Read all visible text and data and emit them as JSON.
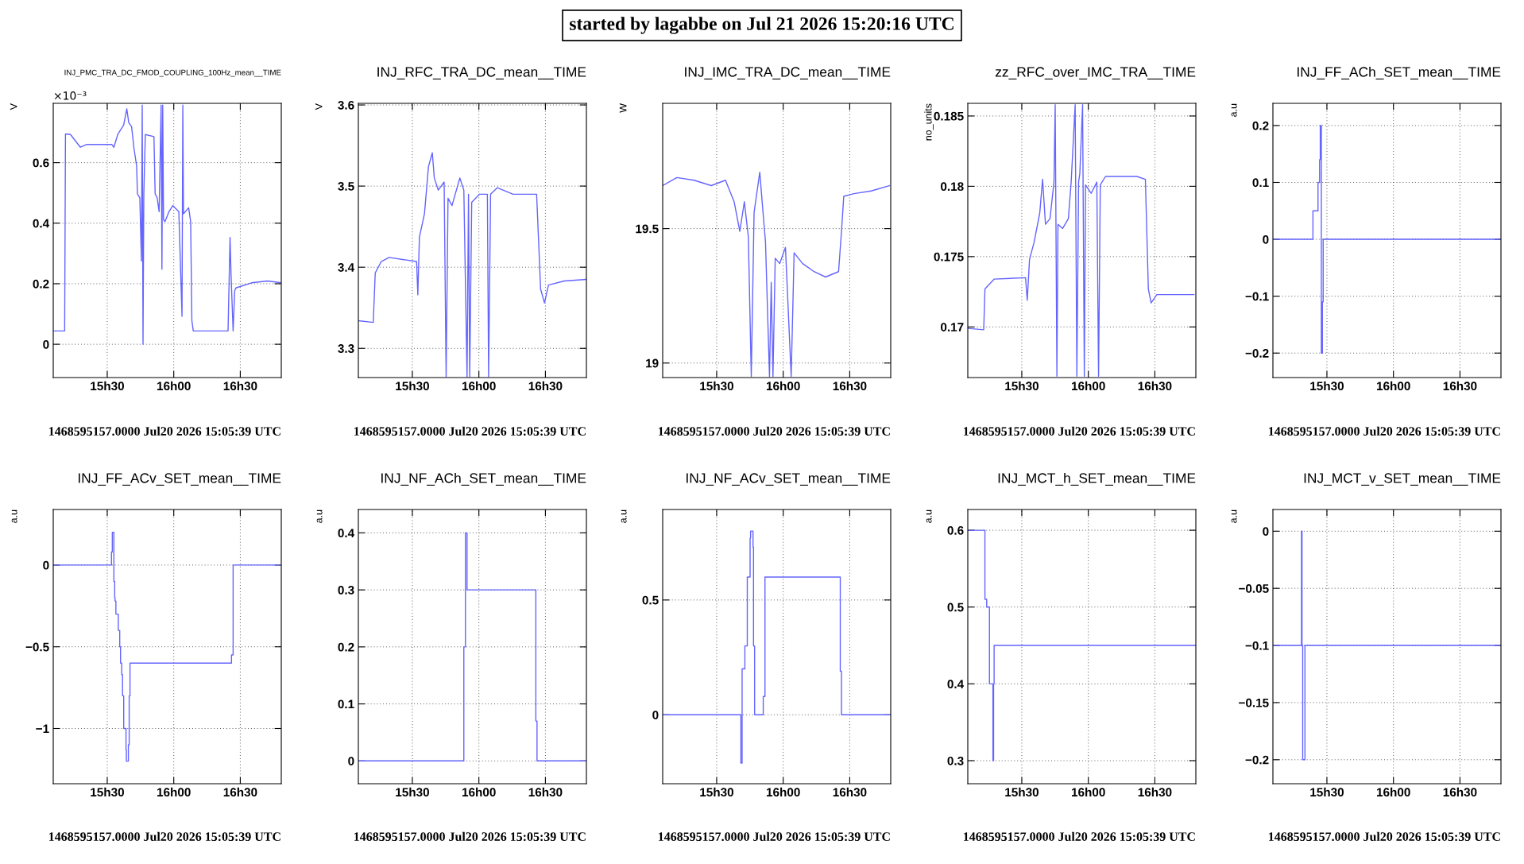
{
  "chart_data": [
    {
      "type": "line",
      "title": "INJ_PMC_TRA_DC_FMOD_COUPLING_100Hz_mean__TIME",
      "ylabel": "V",
      "xlabel": "1468595157.0000 Jul20 2026 15:05:39 UTC",
      "annotations": [
        "×10⁻³",
        "started by lagabbe on Jul 21 2026 15:20:16 UTC"
      ],
      "color": "#6464ff",
      "grid": true,
      "xlim": [
        "2026-07-20T15:05:39",
        "2026-07-20T16:48:29"
      ],
      "xticks": [
        {
          "value": "2026-07-20T15:30",
          "label": "15h30"
        },
        {
          "value": "2026-07-20T16:00",
          "label": "16h00"
        },
        {
          "value": "2026-07-20T16:30",
          "label": "16h30"
        }
      ],
      "ylim": [
        -0.11,
        0.796
      ],
      "yticks": [
        0,
        0.2,
        0.4,
        0.6
      ],
      "x": [
        "2026-07-20T15:05:39",
        "2026-07-20T15:10:48",
        "2026-07-20T15:11:10",
        "2026-07-20T15:13:26",
        "2026-07-20T15:17:53",
        "2026-07-20T15:20:35",
        "2026-07-20T15:32:06",
        "2026-07-20T15:33:00",
        "2026-07-20T15:34:44",
        "2026-07-20T15:37:26",
        "2026-07-20T15:38:49",
        "2026-07-20T15:39:43",
        "2026-07-20T15:40:59",
        "2026-07-20T15:42:04",
        "2026-07-20T15:43:16",
        "2026-07-20T15:43:37",
        "2026-07-20T15:44:42",
        "2026-07-20T15:45:25",
        "2026-07-20T15:45:47",
        "2026-07-20T15:46:08",
        "2026-07-20T15:46:30",
        "2026-07-20T15:47:10",
        "2026-07-20T15:51:04",
        "2026-07-20T15:51:36",
        "2026-07-20T15:52:30",
        "2026-07-20T15:53:24",
        "2026-07-20T15:54:18",
        "2026-07-20T15:54:40",
        "2026-07-20T15:55:01",
        "2026-07-20T15:55:23",
        "2026-07-20T15:56:02",
        "2026-07-20T15:57:50",
        "2026-07-20T15:59:35",
        "2026-07-20T16:02:17",
        "2026-07-20T16:03:43",
        "2026-07-20T16:04:05",
        "2026-07-20T16:04:23",
        "2026-07-20T16:06:43",
        "2026-07-20T16:07:37",
        "2026-07-20T16:08:10",
        "2026-07-20T16:08:49",
        "2026-07-20T16:17:20",
        "2026-07-20T16:24:29",
        "2026-07-20T16:25:23",
        "2026-07-20T16:25:52",
        "2026-07-20T16:26:46",
        "2026-07-20T16:27:29",
        "2026-07-20T16:28:01",
        "2026-07-20T16:35:06",
        "2026-07-20T16:42:14",
        "2026-07-20T16:48:29"
      ],
      "values": [
        0.044,
        0.044,
        0.695,
        0.693,
        0.651,
        0.66,
        0.66,
        0.651,
        0.693,
        0.725,
        0.778,
        0.732,
        0.719,
        0.647,
        0.588,
        0.497,
        0.484,
        0.275,
        0.79,
        0,
        0.497,
        0.693,
        0.686,
        0.497,
        0.484,
        0.438,
        0.79,
        0.248,
        0.79,
        0.412,
        0.405,
        0.438,
        0.458,
        0.438,
        0.092,
        0.79,
        0.431,
        0.451,
        0.405,
        0.078,
        0.044,
        0.044,
        0.044,
        0.353,
        0.222,
        0.044,
        0.176,
        0.186,
        0.203,
        0.209,
        0.203
      ]
    },
    {
      "type": "line",
      "title": "INJ_RFC_TRA_DC_mean__TIME",
      "ylabel": "V",
      "xlabel": "1468595157.0000 Jul20 2026 15:05:39 UTC",
      "color": "#6464ff",
      "grid": true,
      "xlim": [
        "2026-07-20T15:05:39",
        "2026-07-20T16:48:29"
      ],
      "xticks": [
        {
          "value": "2026-07-20T15:30",
          "label": "15h30"
        },
        {
          "value": "2026-07-20T16:00",
          "label": "16h00"
        },
        {
          "value": "2026-07-20T16:30",
          "label": "16h30"
        }
      ],
      "ylim": [
        3.264,
        3.602
      ],
      "yticks": [
        3.3,
        3.4,
        3.5,
        3.6
      ],
      "x": [
        "2026-07-20T15:05:39",
        "2026-07-20T15:12:22",
        "2026-07-20T15:13:16",
        "2026-07-20T15:15:58",
        "2026-07-20T15:19:30",
        "2026-07-20T15:31:55",
        "2026-07-20T15:32:28",
        "2026-07-20T15:33:11",
        "2026-07-20T15:35:28",
        "2026-07-20T15:37:16",
        "2026-07-20T15:39:00",
        "2026-07-20T15:39:54",
        "2026-07-20T15:41:42",
        "2026-07-20T15:44:20",
        "2026-07-20T15:45:14",
        "2026-07-20T15:46:05",
        "2026-07-20T15:47:53",
        "2026-07-20T15:51:25",
        "2026-07-20T15:53:13",
        "2026-07-20T15:54:40",
        "2026-07-20T15:55:19",
        "2026-07-20T15:55:52",
        "2026-07-20T15:56:46",
        "2026-07-20T16:00:18",
        "2026-07-20T16:03:50",
        "2026-07-20T16:04:23",
        "2026-07-20T16:05:17",
        "2026-07-20T16:08:17",
        "2026-07-20T16:15:25",
        "2026-07-20T16:26:02",
        "2026-07-20T16:26:56",
        "2026-07-20T16:27:50",
        "2026-07-20T16:29:35",
        "2026-07-20T16:31:23",
        "2026-07-20T16:38:28",
        "2026-07-20T16:48:25"
      ],
      "values": [
        3.334,
        3.332,
        3.393,
        3.407,
        3.412,
        3.407,
        3.366,
        3.437,
        3.466,
        3.524,
        3.541,
        3.51,
        3.495,
        3.505,
        3.265,
        3.485,
        3.476,
        3.51,
        3.495,
        3.265,
        3.49,
        3.265,
        3.48,
        3.49,
        3.49,
        3.265,
        3.49,
        3.498,
        3.49,
        3.49,
        3.432,
        3.373,
        3.356,
        3.378,
        3.383,
        3.385
      ]
    },
    {
      "type": "line",
      "title": "INJ_IMC_TRA_DC_mean__TIME",
      "ylabel": "W",
      "xlabel": "1468595157.0000 Jul20 2026 15:05:39 UTC",
      "color": "#6464ff",
      "grid": true,
      "xlim": [
        "2026-07-20T15:05:39",
        "2026-07-20T16:48:29"
      ],
      "xticks": [
        {
          "value": "2026-07-20T15:30",
          "label": "15h30"
        },
        {
          "value": "2026-07-20T16:00",
          "label": "16h00"
        },
        {
          "value": "2026-07-20T16:30",
          "label": "16h30"
        }
      ],
      "ylim": [
        18.946,
        19.966
      ],
      "yticks": [
        19,
        19.5
      ],
      "x": [
        "2026-07-20T15:05:39",
        "2026-07-20T15:12:04",
        "2026-07-20T15:19:48",
        "2026-07-20T15:27:32",
        "2026-07-20T15:33:58",
        "2026-07-20T15:37:52",
        "2026-07-20T15:40:26",
        "2026-07-20T15:42:29",
        "2026-07-20T15:44:17",
        "2026-07-20T15:45:36",
        "2026-07-20T15:46:52",
        "2026-07-20T15:49:26",
        "2026-07-20T15:50:42",
        "2026-07-20T15:52:01",
        "2026-07-20T15:53:49",
        "2026-07-20T15:54:36",
        "2026-07-20T15:55:23",
        "2026-07-20T15:56:24",
        "2026-07-20T15:58:26",
        "2026-07-20T16:01:01",
        "2026-07-20T16:03:36",
        "2026-07-20T16:04:55",
        "2026-07-20T16:08:46",
        "2026-07-20T16:13:55",
        "2026-07-20T16:19:05",
        "2026-07-20T16:24:58",
        "2026-07-20T16:26:17",
        "2026-07-20T16:27:18",
        "2026-07-20T16:31:55",
        "2026-07-20T16:39:40",
        "2026-07-20T16:47:56"
      ],
      "values": [
        19.66,
        19.69,
        19.68,
        19.66,
        19.68,
        19.6,
        19.49,
        19.6,
        19.47,
        18.95,
        19.56,
        19.71,
        19.58,
        19.45,
        18.95,
        19.3,
        18.95,
        19.39,
        19.37,
        19.43,
        18.95,
        19.41,
        19.37,
        19.34,
        19.32,
        19.34,
        19.49,
        19.62,
        19.63,
        19.64,
        19.66
      ]
    },
    {
      "type": "line",
      "title": "zz_RFC_over_IMC_TRA__TIME",
      "ylabel": "no_units",
      "xlabel": "1468595157.0000 Jul20 2026 15:05:39 UTC",
      "color": "#6464ff",
      "grid": true,
      "xlim": [
        "2026-07-20T15:05:39",
        "2026-07-20T16:48:29"
      ],
      "xticks": [
        {
          "value": "2026-07-20T15:30",
          "label": "15h30"
        },
        {
          "value": "2026-07-20T16:00",
          "label": "16h00"
        },
        {
          "value": "2026-07-20T16:30",
          "label": "16h30"
        }
      ],
      "ylim": [
        0.1664,
        0.1859
      ],
      "yticks": [
        0.17,
        0.175,
        0.18,
        0.185
      ],
      "x": [
        "2026-07-20T15:05:39",
        "2026-07-20T15:12:50",
        "2026-07-20T15:13:23",
        "2026-07-20T15:17:31",
        "2026-07-20T15:31:41",
        "2026-07-20T15:32:28",
        "2026-07-20T15:33:29",
        "2026-07-20T15:35:31",
        "2026-07-20T15:38:06",
        "2026-07-20T15:39:22",
        "2026-07-20T15:40:41",
        "2026-07-20T15:42:43",
        "2026-07-20T15:44:31",
        "2026-07-20T15:45:04",
        "2026-07-20T15:45:50",
        "2026-07-20T15:46:19",
        "2026-07-20T15:48:25",
        "2026-07-20T15:51:00",
        "2026-07-20T15:52:16",
        "2026-07-20T15:54:04",
        "2026-07-20T15:54:50",
        "2026-07-20T15:55:37",
        "2026-07-20T15:56:10",
        "2026-07-20T15:57:25",
        "2026-07-20T15:58:12",
        "2026-07-20T15:58:44",
        "2026-07-20T16:01:16",
        "2026-07-20T16:03:50",
        "2026-07-20T16:04:37",
        "2026-07-20T16:05:24",
        "2026-07-20T16:07:44",
        "2026-07-20T16:21:54",
        "2026-07-20T16:25:44",
        "2026-07-20T16:27:04",
        "2026-07-20T16:28:19",
        "2026-07-20T16:30:54",
        "2026-07-20T16:47:38"
      ],
      "values": [
        0.1699,
        0.1698,
        0.1727,
        0.1734,
        0.1735,
        0.1719,
        0.1748,
        0.176,
        0.1781,
        0.1805,
        0.1773,
        0.1777,
        0.1803,
        0.1858,
        0.1665,
        0.1773,
        0.177,
        0.1777,
        0.1803,
        0.1858,
        0.1665,
        0.1803,
        0.1809,
        0.1858,
        0.1665,
        0.1801,
        0.1795,
        0.1803,
        0.1665,
        0.1801,
        0.1807,
        0.1807,
        0.1805,
        0.1727,
        0.1717,
        0.1723,
        0.1723
      ]
    },
    {
      "type": "step",
      "title": "INJ_FF_ACh_SET_mean__TIME",
      "ylabel": "a.u",
      "xlabel": "1468595157.0000 Jul20 2026 15:05:39 UTC",
      "color": "#6464ff",
      "grid": true,
      "xlim": [
        "2026-07-20T15:05:39",
        "2026-07-20T16:48:29"
      ],
      "xticks": [
        {
          "value": "2026-07-20T15:30",
          "label": "15h30"
        },
        {
          "value": "2026-07-20T16:00",
          "label": "16h00"
        },
        {
          "value": "2026-07-20T16:30",
          "label": "16h30"
        }
      ],
      "ylim": [
        -0.243,
        0.239
      ],
      "yticks": [
        -0.2,
        -0.1,
        0,
        0.1,
        0.2
      ],
      "x": [
        "2026-07-20T15:05:39",
        "2026-07-20T15:23:42",
        "2026-07-20T15:25:59",
        "2026-07-20T15:26:42",
        "2026-07-20T15:27:00",
        "2026-07-20T15:27:29",
        "2026-07-20T15:27:58",
        "2026-07-20T15:28:19",
        "2026-07-20T16:48:29"
      ],
      "values": [
        0,
        0.05,
        0.1,
        0.14,
        0.2,
        -0.2,
        -0.11,
        0,
        0
      ]
    },
    {
      "type": "step",
      "title": "INJ_FF_ACv_SET_mean__TIME",
      "ylabel": "a.u",
      "xlabel": "1468595157.0000 Jul20 2026 15:05:39 UTC",
      "color": "#6464ff",
      "grid": true,
      "xlim": [
        "2026-07-20T15:05:39",
        "2026-07-20T16:48:29"
      ],
      "xticks": [
        {
          "value": "2026-07-20T15:30",
          "label": "15h30"
        },
        {
          "value": "2026-07-20T16:00",
          "label": "16h00"
        },
        {
          "value": "2026-07-20T16:30",
          "label": "16h30"
        }
      ],
      "ylim": [
        -1.338,
        0.34
      ],
      "yticks": [
        -1,
        -0.5,
        0
      ],
      "x": [
        "2026-07-20T15:05:39",
        "2026-07-20T15:31:55",
        "2026-07-20T15:32:17",
        "2026-07-20T15:33:00",
        "2026-07-20T15:33:22",
        "2026-07-20T15:33:32",
        "2026-07-20T15:33:54",
        "2026-07-20T15:34:59",
        "2026-07-20T15:35:38",
        "2026-07-20T15:36:00",
        "2026-07-20T15:36:32",
        "2026-07-20T15:36:54",
        "2026-07-20T15:37:26",
        "2026-07-20T15:38:28",
        "2026-07-20T15:38:38",
        "2026-07-20T15:39:32",
        "2026-07-20T15:39:54",
        "2026-07-20T15:40:16",
        "2026-07-20T16:26:02",
        "2026-07-20T16:26:46",
        "2026-07-20T16:48:29"
      ],
      "values": [
        0,
        0.08,
        0.2,
        -0.1,
        -0.2,
        -0.22,
        -0.3,
        -0.4,
        -0.5,
        -0.6,
        -0.67,
        -0.8,
        -1,
        -1.13,
        -1.2,
        -1.1,
        -0.8,
        -0.6,
        -0.55,
        0,
        0
      ]
    },
    {
      "type": "step",
      "title": "INJ_NF_ACh_SET_mean__TIME",
      "ylabel": "a.u",
      "xlabel": "1468595157.0000 Jul20 2026 15:05:39 UTC",
      "color": "#6464ff",
      "grid": true,
      "xlim": [
        "2026-07-20T15:05:39",
        "2026-07-20T16:48:29"
      ],
      "xticks": [
        {
          "value": "2026-07-20T15:30",
          "label": "15h30"
        },
        {
          "value": "2026-07-20T16:00",
          "label": "16h00"
        },
        {
          "value": "2026-07-20T16:30",
          "label": "16h30"
        }
      ],
      "ylim": [
        -0.04,
        0.441
      ],
      "yticks": [
        0,
        0.1,
        0.2,
        0.3,
        0.4
      ],
      "x": [
        "2026-07-20T15:05:39",
        "2026-07-20T15:53:13",
        "2026-07-20T15:53:56",
        "2026-07-20T15:54:40",
        "2026-07-20T16:25:41",
        "2026-07-20T16:26:13",
        "2026-07-20T16:48:29"
      ],
      "values": [
        0,
        0.2,
        0.4,
        0.3,
        0.07,
        0,
        0
      ]
    },
    {
      "type": "step",
      "title": "INJ_NF_ACv_SET_mean__TIME",
      "ylabel": "a.u",
      "xlabel": "1468595157.0000 Jul20 2026 15:05:39 UTC",
      "color": "#6464ff",
      "grid": true,
      "xlim": [
        "2026-07-20T15:05:39",
        "2026-07-20T16:48:29"
      ],
      "xticks": [
        {
          "value": "2026-07-20T15:30",
          "label": "15h30"
        },
        {
          "value": "2026-07-20T16:00",
          "label": "16h00"
        },
        {
          "value": "2026-07-20T16:30",
          "label": "16h30"
        }
      ],
      "ylim": [
        -0.3,
        0.894
      ],
      "yticks": [
        0,
        0.5
      ],
      "x": [
        "2026-07-20T15:05:39",
        "2026-07-20T15:40:55",
        "2026-07-20T15:41:28",
        "2026-07-20T15:42:43",
        "2026-07-20T15:43:48",
        "2026-07-20T15:45:04",
        "2026-07-20T15:45:18",
        "2026-07-20T15:46:23",
        "2026-07-20T15:46:37",
        "2026-07-20T15:47:06",
        "2026-07-20T15:51:00",
        "2026-07-20T15:51:47",
        "2026-07-20T16:25:44",
        "2026-07-20T16:26:17",
        "2026-07-20T16:48:29"
      ],
      "values": [
        0,
        -0.21,
        0.2,
        0.3,
        0.6,
        0.77,
        0.8,
        0.73,
        0.3,
        0,
        0.08,
        0.6,
        0.19,
        0,
        0
      ]
    },
    {
      "type": "step",
      "title": "INJ_MCT_h_SET_mean__TIME",
      "ylabel": "a.u",
      "xlabel": "1468595157.0000 Jul20 2026 15:05:39 UTC",
      "color": "#6464ff",
      "grid": true,
      "xlim": [
        "2026-07-20T15:05:39",
        "2026-07-20T16:48:29"
      ],
      "xticks": [
        {
          "value": "2026-07-20T15:30",
          "label": "15h30"
        },
        {
          "value": "2026-07-20T16:00",
          "label": "16h00"
        },
        {
          "value": "2026-07-20T16:30",
          "label": "16h30"
        }
      ],
      "ylim": [
        0.27,
        0.627
      ],
      "yticks": [
        0.3,
        0.4,
        0.5,
        0.6
      ],
      "x": [
        "2026-07-20T15:05:39",
        "2026-07-20T15:13:23",
        "2026-07-20T15:14:10",
        "2026-07-20T15:15:25",
        "2026-07-20T15:16:59",
        "2026-07-20T15:17:17",
        "2026-07-20T15:17:31",
        "2026-07-20T16:48:29"
      ],
      "values": [
        0.6,
        0.51,
        0.5,
        0.4,
        0.3,
        0.4,
        0.45,
        0.45
      ]
    },
    {
      "type": "step",
      "title": "INJ_MCT_v_SET_mean__TIME",
      "ylabel": "a.u",
      "xlabel": "1468595157.0000 Jul20 2026 15:05:39 UTC",
      "color": "#6464ff",
      "grid": true,
      "xlim": [
        "2026-07-20T15:05:39",
        "2026-07-20T16:48:29"
      ],
      "xticks": [
        {
          "value": "2026-07-20T15:30",
          "label": "15h30"
        },
        {
          "value": "2026-07-20T16:00",
          "label": "16h00"
        },
        {
          "value": "2026-07-20T16:30",
          "label": "16h30"
        }
      ],
      "ylim": [
        -0.221,
        0.019
      ],
      "yticks": [
        -0.2,
        -0.15,
        -0.1,
        -0.05,
        0
      ],
      "x": [
        "2026-07-20T15:05:39",
        "2026-07-20T15:18:32",
        "2026-07-20T15:18:47",
        "2026-07-20T15:19:05",
        "2026-07-20T15:20:06",
        "2026-07-20T16:48:29"
      ],
      "values": [
        -0.1,
        0,
        -0.1,
        -0.2,
        -0.1,
        -0.1
      ]
    }
  ]
}
